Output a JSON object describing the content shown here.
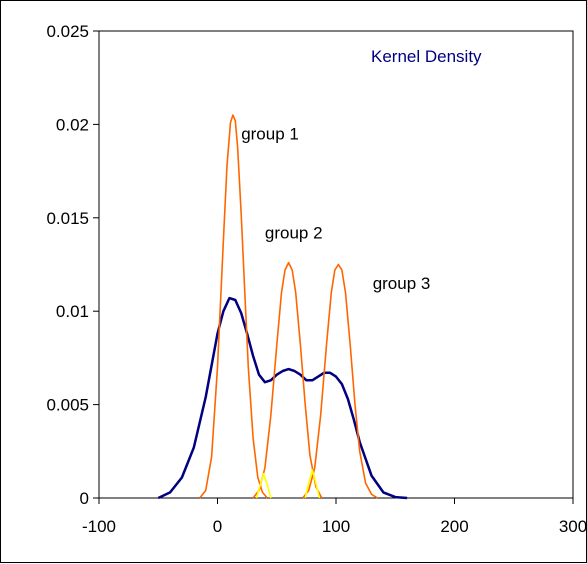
{
  "chart_data": {
    "type": "line",
    "title": "",
    "xlabel": "",
    "ylabel": "",
    "xlim": [
      -100,
      300
    ],
    "ylim": [
      0,
      0.025
    ],
    "x_ticks": [
      "-100",
      "0",
      "100",
      "200",
      "300"
    ],
    "y_ticks": [
      "0",
      "0.005",
      "0.01",
      "0.015",
      "0.02",
      "0.025"
    ],
    "grid": false,
    "legend_label": "Kernel Density",
    "legend_color": "#000080",
    "annotations": [
      {
        "text": "group 1",
        "x": 20,
        "y": 0.0192
      },
      {
        "text": "group 2",
        "x": 40,
        "y": 0.0139
      },
      {
        "text": "group 3",
        "x": 131,
        "y": 0.0112
      }
    ],
    "series": [
      {
        "name": "Kernel Density",
        "color": "#000080",
        "x": [
          -50,
          -40,
          -30,
          -20,
          -10,
          0,
          5,
          10,
          15,
          20,
          25,
          30,
          35,
          40,
          45,
          50,
          55,
          60,
          65,
          70,
          75,
          80,
          85,
          90,
          95,
          100,
          105,
          110,
          115,
          120,
          130,
          140,
          150,
          160
        ],
        "y": [
          0,
          0.0003,
          0.0011,
          0.0027,
          0.0054,
          0.0088,
          0.01,
          0.0107,
          0.0106,
          0.0099,
          0.0088,
          0.0076,
          0.0066,
          0.0062,
          0.0063,
          0.0066,
          0.0068,
          0.0069,
          0.0068,
          0.0066,
          0.0063,
          0.0063,
          0.0065,
          0.0067,
          0.0067,
          0.0065,
          0.0061,
          0.0053,
          0.0042,
          0.003,
          0.0012,
          0.0003,
          5e-05,
          0
        ]
      },
      {
        "name": "group 1",
        "color": "#ff6600",
        "x": [
          -15,
          -10,
          -5,
          0,
          5,
          8,
          11,
          13,
          15,
          17,
          20,
          23,
          26,
          30,
          34,
          38,
          42
        ],
        "y": [
          0,
          0.0004,
          0.0022,
          0.007,
          0.0138,
          0.0178,
          0.0201,
          0.0205,
          0.0202,
          0.0188,
          0.0152,
          0.011,
          0.007,
          0.0032,
          0.0011,
          0.0003,
          0
        ]
      },
      {
        "name": "group 2",
        "color": "#ff6600",
        "x": [
          30,
          35,
          40,
          45,
          50,
          54,
          57,
          60,
          63,
          66,
          70,
          74,
          78,
          83,
          88
        ],
        "y": [
          0,
          0.0004,
          0.0016,
          0.0044,
          0.0082,
          0.011,
          0.0122,
          0.0126,
          0.0122,
          0.011,
          0.0082,
          0.005,
          0.0023,
          0.0006,
          0
        ]
      },
      {
        "name": "group 3",
        "color": "#ff6600",
        "x": [
          72,
          77,
          82,
          87,
          92,
          96,
          99,
          102,
          105,
          108,
          112,
          116,
          120,
          125,
          130,
          135
        ],
        "y": [
          0,
          0.0004,
          0.0016,
          0.0044,
          0.0082,
          0.011,
          0.0122,
          0.0125,
          0.0122,
          0.011,
          0.0082,
          0.005,
          0.0025,
          0.0008,
          0.0002,
          0
        ]
      },
      {
        "name": "overlap 1-2",
        "color": "#ffff00",
        "x": [
          33,
          36,
          39,
          42,
          45
        ],
        "y": [
          0,
          0.0007,
          0.0013,
          0.0007,
          0
        ]
      },
      {
        "name": "overlap 2-3",
        "color": "#ffff00",
        "x": [
          74,
          77,
          80,
          83,
          86
        ],
        "y": [
          0,
          0.0008,
          0.0015,
          0.0008,
          0
        ]
      }
    ]
  }
}
